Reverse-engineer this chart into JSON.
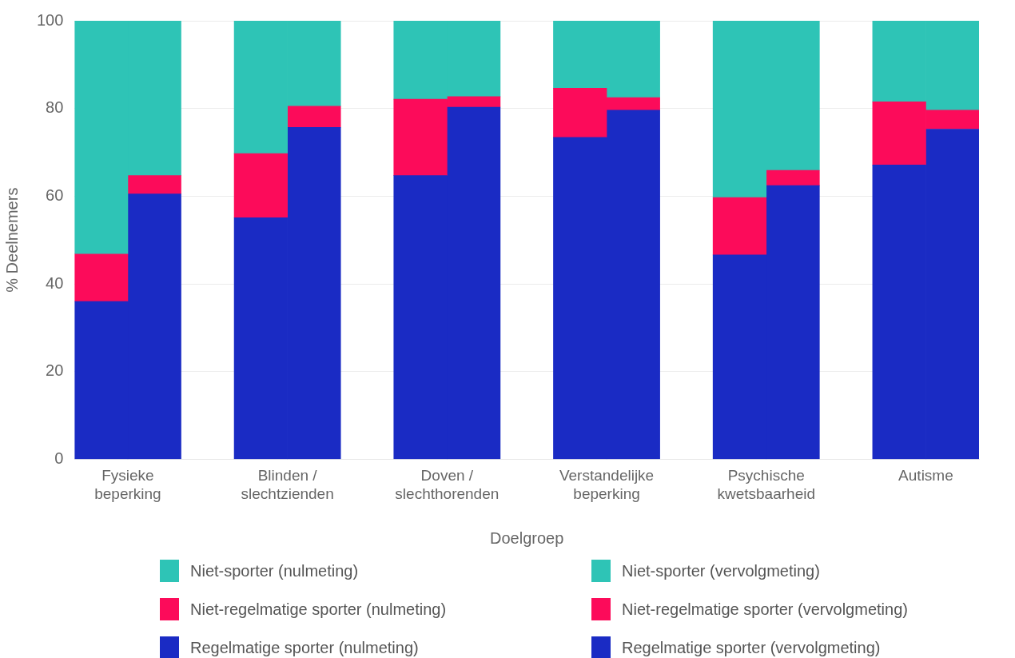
{
  "chart_data": {
    "type": "bar",
    "stacked": true,
    "xlabel": "Doelgroep",
    "ylabel": "% Deelnemers",
    "categories": [
      "Fysieke beperking",
      null,
      null,
      "Blinden / slechtzienden",
      null,
      null,
      "Doven / slechthorenden",
      null,
      null,
      "Verstandelijke beperking",
      null,
      null,
      "Psychische kwetsbaarheid",
      null,
      null,
      "Autisme",
      null
    ],
    "series": [
      {
        "name": "Regelmatige sporter (nulmeting)",
        "color": "#1a2bc4",
        "values": [
          36.0,
          null,
          null,
          55.1,
          null,
          null,
          64.7,
          null,
          null,
          73.4,
          null,
          null,
          46.6,
          null,
          null,
          67.1,
          null
        ]
      },
      {
        "name": "Niet-regelmatige sporter (nulmeting)",
        "color": "#fc0b5a",
        "values": [
          10.8,
          null,
          null,
          14.6,
          null,
          null,
          17.4,
          null,
          null,
          11.2,
          null,
          null,
          13.1,
          null,
          null,
          14.4,
          null
        ]
      },
      {
        "name": "Niet-sporter (nulmeting)",
        "color": "#2ec4b6",
        "values": [
          53.2,
          null,
          null,
          30.3,
          null,
          null,
          17.9,
          null,
          null,
          15.4,
          null,
          null,
          40.3,
          null,
          null,
          18.5,
          null
        ]
      },
      {
        "name": "Regelmatige sporter (vervolgmeting)",
        "color": "#1a2bc4",
        "values": [
          null,
          60.5,
          null,
          null,
          75.7,
          null,
          null,
          80.3,
          null,
          null,
          79.6,
          null,
          null,
          62.4,
          null,
          null,
          75.3
        ]
      },
      {
        "name": "Niet-regelmatige sporter (vervolgmeting)",
        "color": "#fc0b5a",
        "values": [
          null,
          4.2,
          null,
          null,
          4.8,
          null,
          null,
          2.4,
          null,
          null,
          2.9,
          null,
          null,
          3.5,
          null,
          null,
          4.3
        ]
      },
      {
        "name": "Niet-sporter (vervolgmeting)",
        "color": "#2ec4b6",
        "values": [
          null,
          35.3,
          null,
          null,
          19.5,
          null,
          null,
          17.3,
          null,
          null,
          17.5,
          null,
          null,
          34.1,
          null,
          null,
          20.4
        ]
      }
    ],
    "ylim": [
      0,
      100
    ],
    "yticks": [
      0,
      20,
      40,
      60,
      80,
      100
    ],
    "grid": "y",
    "legend": "bottom"
  }
}
